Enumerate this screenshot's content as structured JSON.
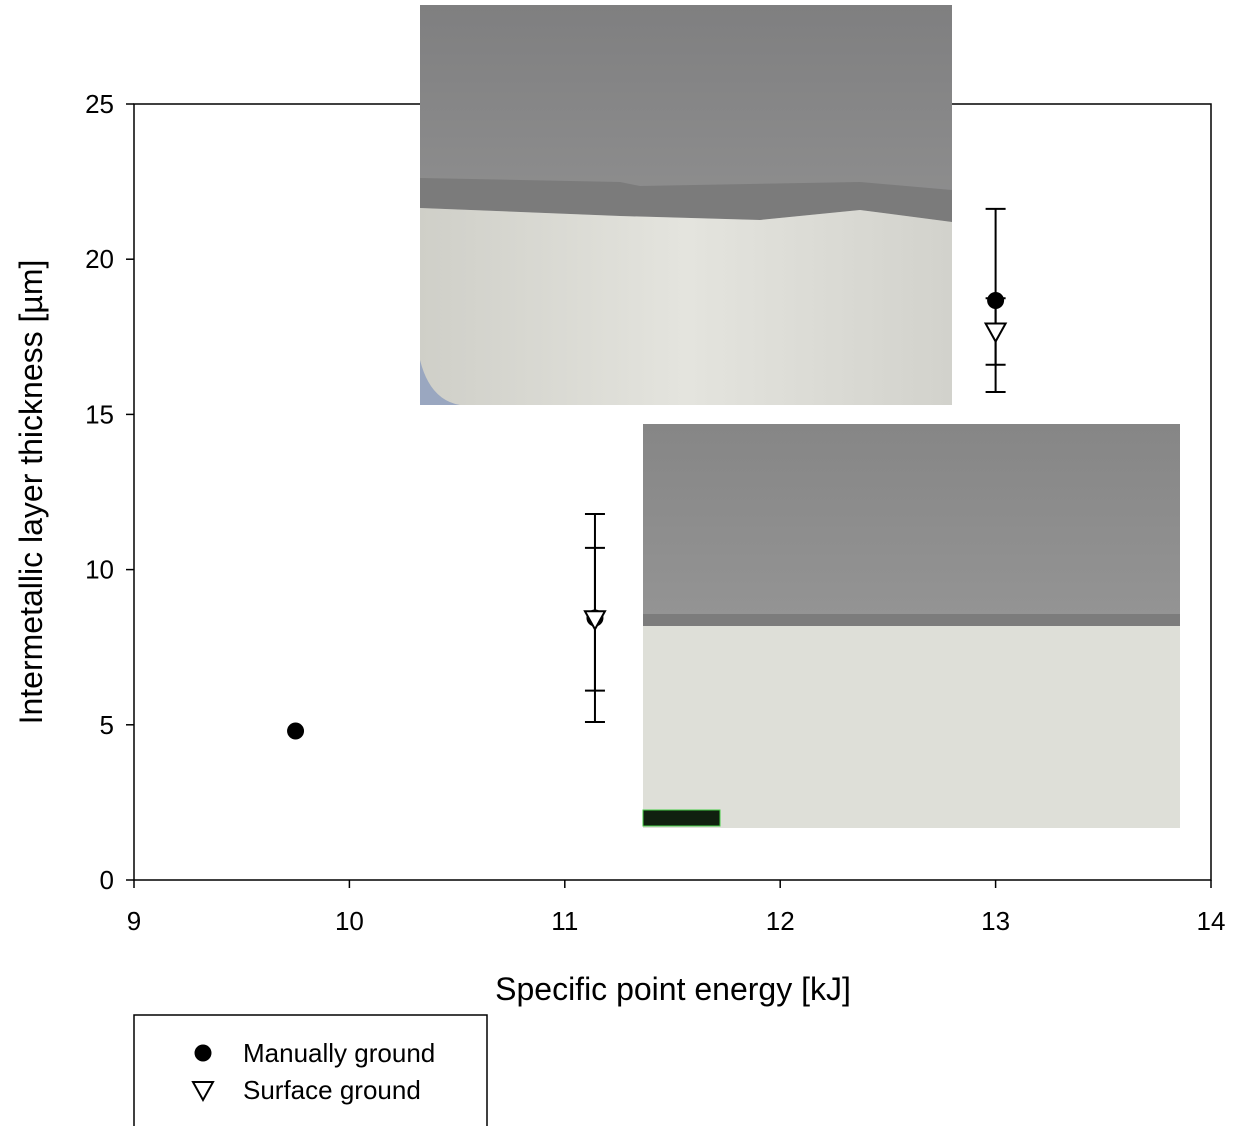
{
  "chart_data": {
    "type": "scatter",
    "x_label": "Specific point energy [kJ]",
    "y_label": "Intermetallic layer thickness [µm]",
    "xlim": [
      9,
      14
    ],
    "xticks": [
      9,
      10,
      11,
      12,
      13,
      14
    ],
    "ylim": [
      0,
      25
    ],
    "yticks": [
      0,
      5,
      10,
      15,
      20,
      25
    ],
    "legend": "bottom-left",
    "series": [
      {
        "name": "Manually ground",
        "color": "#000000",
        "marker": "circle",
        "x": [
          9.75,
          11.14,
          13
        ],
        "values": [
          4.8,
          8.44,
          18.67
        ],
        "errors": [
          null,
          3.35,
          2.95
        ]
      },
      {
        "name": "Surface ground",
        "color": "#000000",
        "marker": "triangle-down",
        "x": [
          11.14,
          13
        ],
        "values": [
          8.4,
          17.67
        ],
        "errors": [
          2.3,
          1.07
        ]
      }
    ]
  }
}
